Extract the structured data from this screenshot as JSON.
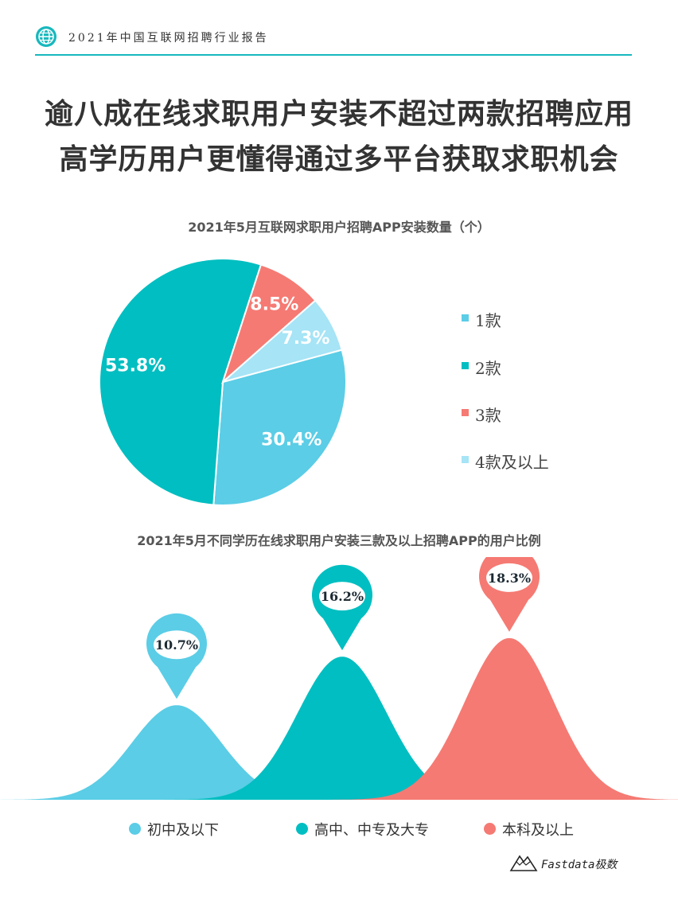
{
  "header": {
    "report_title": "2021年中国互联网招聘行业报告",
    "rule_color": "#17b8bd",
    "icon": "globe-icon"
  },
  "headline": {
    "line1": "逾八成在线求职用户安装不超过两款招聘应用",
    "line2": "高学历用户更懂得通过多平台获取求职机会"
  },
  "chart_data": [
    {
      "type": "pie",
      "title": "2021年5月互联网求职用户招聘APP安装数量（个）",
      "categories": [
        "1款",
        "2款",
        "3款",
        "4款及以上"
      ],
      "values": [
        30.4,
        53.8,
        8.5,
        7.3
      ],
      "data_labels": [
        "30.4%",
        "53.8%",
        "8.5%",
        "7.3%"
      ],
      "colors": [
        "#5bcde6",
        "#00bec1",
        "#f57a73",
        "#a6e4f6"
      ],
      "legend_position": "right"
    },
    {
      "type": "area",
      "title": "2021年5月不同学历在线求职用户安装三款及以上招聘APP的用户比例",
      "categories": [
        "初中及以下",
        "高中、中专及大专",
        "本科及以上"
      ],
      "values": [
        10.7,
        16.2,
        18.3
      ],
      "data_labels": [
        "10.7%",
        "16.2%",
        "18.3%"
      ],
      "colors": [
        "#5bcde6",
        "#00bec1",
        "#f57a73"
      ],
      "legend_position": "bottom"
    }
  ],
  "brand": {
    "name": "Fastdata极数",
    "icon": "mountain-logo-icon"
  }
}
